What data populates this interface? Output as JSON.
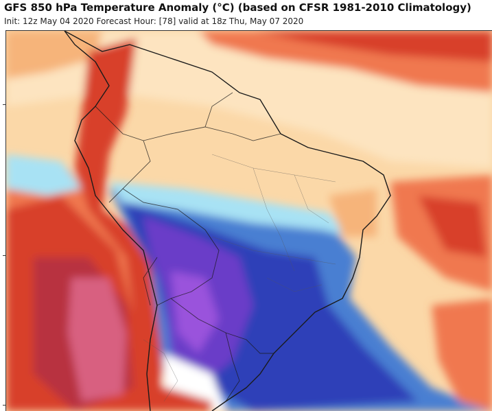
{
  "header": {
    "title": "GFS 850 hPa Temperature Anomaly (°C) (based on CFSR 1981-2010 Climatology)",
    "subtitle": "Init: 12z May 04 2020   Forecast Hour: [78]   valid at 18z Thu, May 07 2020"
  },
  "map": {
    "region": "South America",
    "field": "850 hPa temperature anomaly",
    "palette": {
      "deep_warm": "#b83040",
      "warm": "#d8402c",
      "orange": "#f07850",
      "light_orange": "#f6b47a",
      "pale": "#fde4c0",
      "near_zero": "#ffffff",
      "light_blue": "#a8e2f4",
      "cool": "#4a7fd2",
      "cold": "#2e40b8",
      "very_cold": "#6a3ec8",
      "coldest": "#9a52dc",
      "pink": "#d86080",
      "borders": "#1a1a1a"
    }
  }
}
